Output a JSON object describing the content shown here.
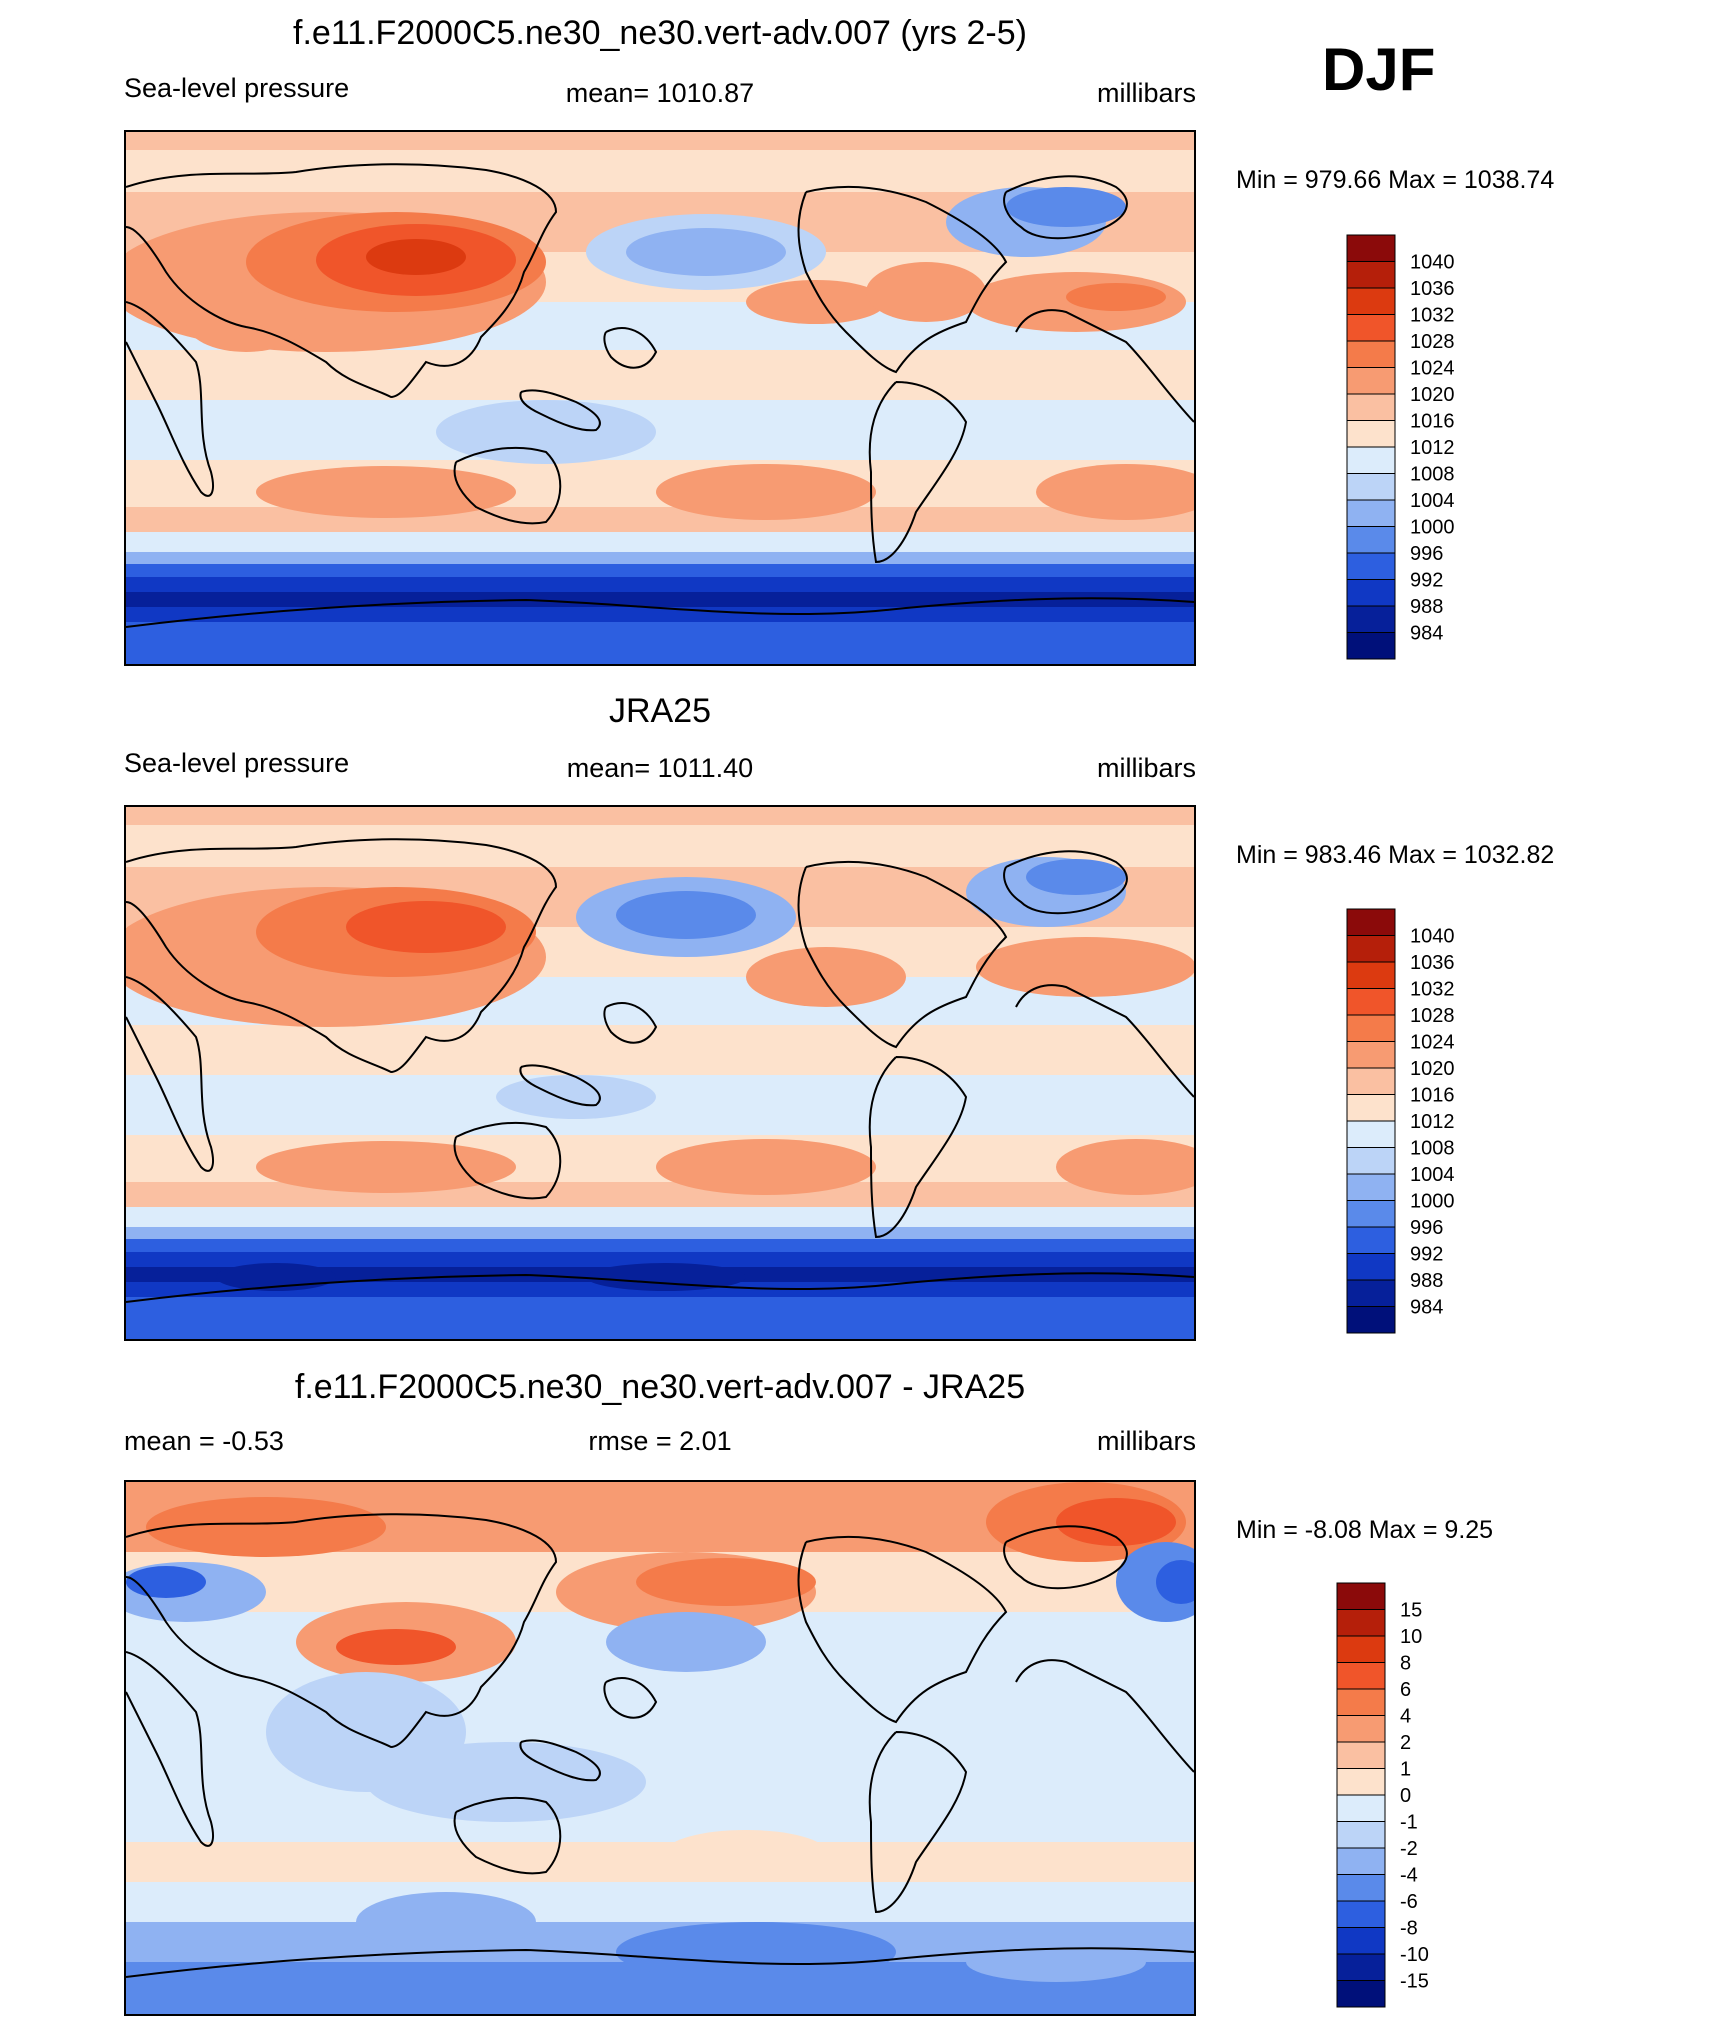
{
  "domain": "Chart",
  "season_label": "DJF",
  "chart_data": [
    {
      "type": "heatmap",
      "title": "f.e11.F2000C5.ne30_ne30.vert-adv.007 (yrs 2-5)",
      "left_label": "Sea-level pressure",
      "center_label": "mean= 1010.87",
      "units": "millibars",
      "minmax": "Min = 979.66 Max = 1038.74",
      "min": 979.66,
      "max": 1038.74,
      "colorbar_labels": [
        "1040",
        "1036",
        "1032",
        "1028",
        "1024",
        "1020",
        "1016",
        "1012",
        "1008",
        "1004",
        "1000",
        "996",
        "992",
        "988",
        "984"
      ],
      "colors": [
        "#8b0a0a",
        "#b51f0a",
        "#dc3a10",
        "#f0552a",
        "#f47b4a",
        "#f79b72",
        "#fac0a2",
        "#fde2cc",
        "#dcecfb",
        "#bcd4f7",
        "#8fb2f2",
        "#5a8aea",
        "#2d5fe0",
        "#1038c4",
        "#06209a",
        "#00107a"
      ]
    },
    {
      "type": "heatmap",
      "title": "JRA25",
      "left_label": "Sea-level pressure",
      "center_label": "mean= 1011.40",
      "units": "millibars",
      "minmax": "Min = 983.46 Max = 1032.82",
      "min": 983.46,
      "max": 1032.82,
      "colorbar_labels": [
        "1040",
        "1036",
        "1032",
        "1028",
        "1024",
        "1020",
        "1016",
        "1012",
        "1008",
        "1004",
        "1000",
        "996",
        "992",
        "988",
        "984"
      ],
      "colors": [
        "#8b0a0a",
        "#b51f0a",
        "#dc3a10",
        "#f0552a",
        "#f47b4a",
        "#f79b72",
        "#fac0a2",
        "#fde2cc",
        "#dcecfb",
        "#bcd4f7",
        "#8fb2f2",
        "#5a8aea",
        "#2d5fe0",
        "#1038c4",
        "#06209a",
        "#00107a"
      ]
    },
    {
      "type": "heatmap",
      "title": "f.e11.F2000C5.ne30_ne30.vert-adv.007 - JRA25",
      "left_label": "mean =  -0.53",
      "center_label": "rmse =   2.01",
      "units": "millibars",
      "minmax": "Min =  -8.08 Max =    9.25",
      "min": -8.08,
      "max": 9.25,
      "colorbar_labels": [
        "15",
        "10",
        "8",
        "6",
        "4",
        "2",
        "1",
        "0",
        "-1",
        "-2",
        "-4",
        "-6",
        "-8",
        "-10",
        "-15"
      ],
      "colors": [
        "#8b0a0a",
        "#b51f0a",
        "#dc3a10",
        "#f0552a",
        "#f47b4a",
        "#f79b72",
        "#fac0a2",
        "#fde2cc",
        "#dcecfb",
        "#bcd4f7",
        "#8fb2f2",
        "#5a8aea",
        "#2d5fe0",
        "#1038c4",
        "#06209a",
        "#00107a"
      ]
    }
  ]
}
